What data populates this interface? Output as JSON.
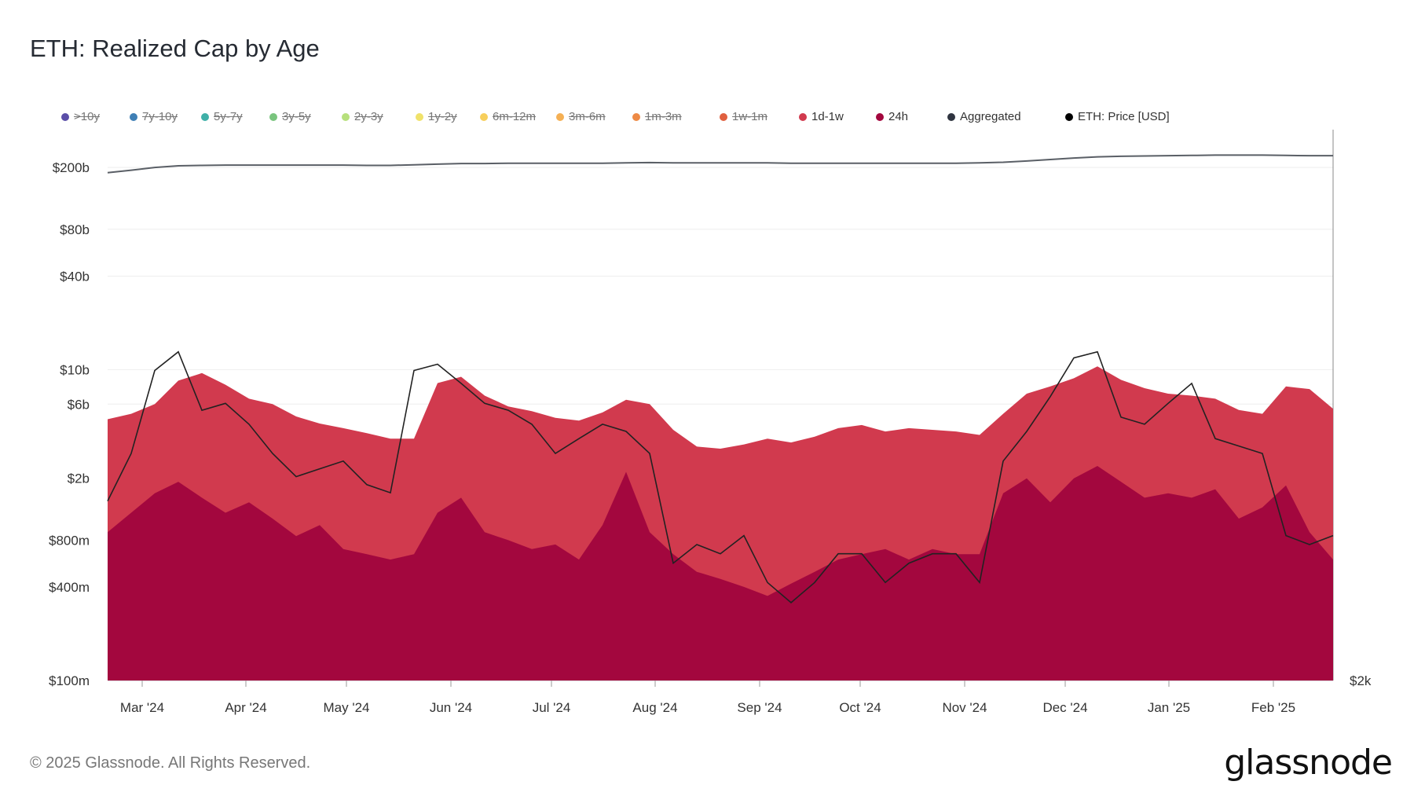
{
  "title": "ETH: Realized Cap by Age",
  "footer": "© 2025 Glassnode. All Rights Reserved.",
  "brand": "glassnode",
  "legend": [
    {
      "label": ">10y",
      "color": "#5b4ea8",
      "disabled": true
    },
    {
      "label": "7y-10y",
      "color": "#3f7fb5",
      "disabled": true
    },
    {
      "label": "5y-7y",
      "color": "#3fb0a8",
      "disabled": true
    },
    {
      "label": "3y-5y",
      "color": "#79c47e",
      "disabled": true
    },
    {
      "label": "2y-3y",
      "color": "#b7e07c",
      "disabled": true
    },
    {
      "label": "1y-2y",
      "color": "#f0e26a",
      "disabled": true
    },
    {
      "label": "6m-12m",
      "color": "#f7cf5c",
      "disabled": true
    },
    {
      "label": "3m-6m",
      "color": "#f5b054",
      "disabled": true
    },
    {
      "label": "1m-3m",
      "color": "#ee8a45",
      "disabled": true
    },
    {
      "label": "1w-1m",
      "color": "#e0603f",
      "disabled": true
    },
    {
      "label": "1d-1w",
      "color": "#d13a4e",
      "disabled": false
    },
    {
      "label": "24h",
      "color": "#a3073e",
      "disabled": false
    },
    {
      "label": "Aggregated",
      "color": "#2f3440",
      "disabled": false
    },
    {
      "label": "ETH: Price [USD]",
      "color": "#000000",
      "disabled": false
    }
  ],
  "chart_data": {
    "type": "area",
    "title": "ETH: Realized Cap by Age",
    "y_scale": "log",
    "y_ticks": [
      "$200b",
      "$80b",
      "$40b",
      "$10b",
      "$6b",
      "$2b",
      "$800m",
      "$400m",
      "$100m"
    ],
    "y_tick_values": [
      200000000000,
      80000000000,
      40000000000,
      10000000000,
      6000000000,
      2000000000,
      800000000,
      400000000,
      100000000
    ],
    "y2_tick": "$2k",
    "x_ticks": [
      "Mar '24",
      "Apr '24",
      "May '24",
      "Jun '24",
      "Jul '24",
      "Aug '24",
      "Sep '24",
      "Oct '24",
      "Nov '24",
      "Dec '24",
      "Jan '25",
      "Feb '25"
    ],
    "x": [
      "2024-02-19",
      "2024-02-26",
      "2024-03-04",
      "2024-03-11",
      "2024-03-18",
      "2024-03-25",
      "2024-04-01",
      "2024-04-08",
      "2024-04-15",
      "2024-04-22",
      "2024-04-29",
      "2024-05-06",
      "2024-05-13",
      "2024-05-20",
      "2024-05-27",
      "2024-06-03",
      "2024-06-10",
      "2024-06-17",
      "2024-06-24",
      "2024-07-01",
      "2024-07-08",
      "2024-07-15",
      "2024-07-22",
      "2024-07-29",
      "2024-08-05",
      "2024-08-12",
      "2024-08-19",
      "2024-08-26",
      "2024-09-02",
      "2024-09-09",
      "2024-09-16",
      "2024-09-23",
      "2024-09-30",
      "2024-10-07",
      "2024-10-14",
      "2024-10-21",
      "2024-10-28",
      "2024-11-04",
      "2024-11-11",
      "2024-11-18",
      "2024-11-25",
      "2024-12-02",
      "2024-12-09",
      "2024-12-16",
      "2024-12-23",
      "2024-12-30",
      "2025-01-06",
      "2025-01-13",
      "2025-01-20",
      "2025-01-27",
      "2025-02-03",
      "2025-02-10",
      "2025-02-17"
    ],
    "series": [
      {
        "name": "Aggregated",
        "color": "#5a5f66",
        "values": [
          185000000000,
          192000000000,
          200000000000,
          205000000000,
          206000000000,
          207000000000,
          207000000000,
          207000000000,
          207000000000,
          207000000000,
          207000000000,
          206000000000,
          206000000000,
          208000000000,
          210000000000,
          212000000000,
          212000000000,
          213000000000,
          213000000000,
          213000000000,
          213000000000,
          213000000000,
          214000000000,
          215000000000,
          214000000000,
          214000000000,
          214000000000,
          214000000000,
          214000000000,
          213000000000,
          213000000000,
          213000000000,
          213000000000,
          213000000000,
          213000000000,
          213000000000,
          213000000000,
          214000000000,
          216000000000,
          220000000000,
          225000000000,
          230000000000,
          234000000000,
          236000000000,
          237000000000,
          238000000000,
          239000000000,
          240000000000,
          240000000000,
          240000000000,
          239000000000,
          238000000000,
          238000000000
        ]
      },
      {
        "name": "1d-1w",
        "color": "#d13a4e",
        "values": [
          4800000000,
          5200000000,
          6000000000,
          8500000000,
          9500000000,
          8000000000,
          6500000000,
          6000000000,
          5000000000,
          4500000000,
          4200000000,
          3900000000,
          3600000000,
          3600000000,
          8200000000,
          9000000000,
          6800000000,
          5800000000,
          5400000000,
          4900000000,
          4700000000,
          5300000000,
          6400000000,
          6000000000,
          4100000000,
          3200000000,
          3100000000,
          3300000000,
          3600000000,
          3400000000,
          3700000000,
          4200000000,
          4400000000,
          4000000000,
          4200000000,
          4100000000,
          4000000000,
          3800000000,
          5200000000,
          7000000000,
          7800000000,
          8800000000,
          10500000000,
          8600000000,
          7600000000,
          7000000000,
          6800000000,
          6500000000,
          5500000000,
          5200000000,
          7800000000,
          7500000000,
          5600000000
        ]
      },
      {
        "name": "24h",
        "color": "#a3073e",
        "values": [
          900000000,
          1200000000,
          1600000000,
          1900000000,
          1500000000,
          1200000000,
          1400000000,
          1100000000,
          850000000,
          1000000000,
          700000000,
          650000000,
          600000000,
          650000000,
          1200000000,
          1500000000,
          900000000,
          800000000,
          700000000,
          750000000,
          600000000,
          1000000000,
          2200000000,
          900000000,
          650000000,
          500000000,
          450000000,
          400000000,
          350000000,
          420000000,
          500000000,
          600000000,
          650000000,
          700000000,
          600000000,
          700000000,
          650000000,
          650000000,
          1600000000,
          2000000000,
          1400000000,
          2000000000,
          2400000000,
          1900000000,
          1500000000,
          1600000000,
          1500000000,
          1700000000,
          1100000000,
          1300000000,
          1800000000,
          900000000,
          600000000
        ]
      },
      {
        "name": "ETH: Price [USD]",
        "color": "#222222",
        "values": [
          2900,
          3200,
          3800,
          3950,
          3500,
          3550,
          3400,
          3200,
          3050,
          3100,
          3150,
          3000,
          2950,
          3800,
          3850,
          3700,
          3550,
          3500,
          3400,
          3200,
          3300,
          3400,
          3350,
          3200,
          2550,
          2650,
          2600,
          2700,
          2450,
          2350,
          2450,
          2600,
          2600,
          2450,
          2550,
          2600,
          2600,
          2450,
          3150,
          3350,
          3600,
          3900,
          3950,
          3450,
          3400,
          3550,
          3700,
          3300,
          3250,
          3200,
          2700,
          2650,
          2700
        ]
      }
    ]
  }
}
